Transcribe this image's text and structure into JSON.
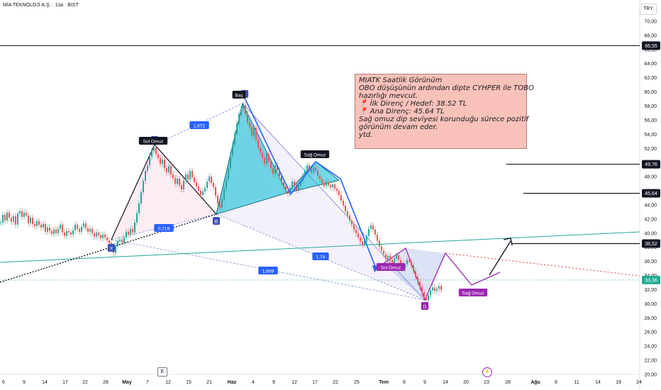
{
  "header": {
    "title": "MİA TEKNOLOJİ A.Ş. · 1sa · BIST",
    "currency": "TRY"
  },
  "annotation": {
    "lines": [
      "MIATK Saatlik Görünüm",
      "OBO düşüşünün ardından dipte CYHPER ile TOBO",
      "hazırlığı mevcut.",
      "📍 İlk Direnç / Hedef: 38.52 TL",
      "📍 Ana Direnç: 45.64 TL",
      "Sağ omuz dip seviyesi korunduğu sürece pozitif",
      "görünüm devam eder.",
      "ytd."
    ]
  },
  "markers": {
    "earnings": "E",
    "dividend": "⚡"
  },
  "chart_data": {
    "type": "line",
    "title": "",
    "y_axis": {
      "ticks": [
        "70,00",
        "68,00",
        "66,00",
        "64,00",
        "62,00",
        "60,00",
        "58,00",
        "56,00",
        "54,00",
        "52,00",
        "50,00",
        "48,00",
        "46,00",
        "44,00",
        "42,00",
        "40,00",
        "38,00",
        "36,00",
        "34,00",
        "32,00",
        "30,00",
        "28,00",
        "26,00",
        "24,00",
        "22,00",
        "20,00"
      ],
      "ylim": [
        20,
        71
      ]
    },
    "x_axis": {
      "ticks": [
        "6",
        "9",
        "14",
        "17",
        "22",
        "28",
        "May",
        "7",
        "12",
        "15",
        "21",
        "Haz",
        "4",
        "9",
        "12",
        "17",
        "22",
        "25",
        "Tem",
        "6",
        "9",
        "14",
        "20",
        "23",
        "28",
        "Ağu",
        "6",
        "11",
        "14",
        "19",
        "24"
      ]
    },
    "price_labels": [
      {
        "value": 66.55,
        "label": "66,55",
        "style": "black"
      },
      {
        "value": 49.76,
        "label": "49,76",
        "style": "black"
      },
      {
        "value": 45.64,
        "label": "45,64",
        "style": "black"
      },
      {
        "value": 38.52,
        "label": "38,52",
        "style": "black"
      },
      {
        "value": 33.36,
        "label": "33,36",
        "style": "teal"
      }
    ],
    "patterns": {
      "xabcd": {
        "points": [
          {
            "name": "X",
            "label": "X",
            "price": 37.0
          },
          {
            "name": "A",
            "label": "A",
            "price": 51.5
          },
          {
            "name": "B",
            "label": "B",
            "price": 42.0
          },
          {
            "name": "C",
            "label": "C",
            "price": 58.0
          },
          {
            "name": "D",
            "label": "D",
            "price": 30.0
          }
        ],
        "ratios": [
          {
            "name": "xb",
            "label": "0,719"
          },
          {
            "name": "ac",
            "label": "1,672"
          },
          {
            "name": "bd",
            "label": "1,74"
          },
          {
            "name": "xd",
            "label": "1,609"
          }
        ]
      },
      "obo": {
        "left": "Sol Omuz",
        "head": "Baş",
        "right": "Sağ Omuz"
      },
      "tobo": {
        "left": "Sol Omuz",
        "right": "Sağ Omuz"
      }
    },
    "series": [
      {
        "name": "price",
        "values": [
          [
            0,
            41.5
          ],
          [
            3,
            42.6
          ],
          [
            6,
            41.8
          ],
          [
            9,
            42.9
          ],
          [
            12,
            42.2
          ],
          [
            15,
            41.6
          ],
          [
            18,
            42.4
          ],
          [
            21,
            41.2
          ],
          [
            24,
            42.8
          ],
          [
            27,
            43.1
          ],
          [
            30,
            42.3
          ],
          [
            33,
            42.9
          ],
          [
            36,
            42.5
          ],
          [
            39,
            41.4
          ],
          [
            42,
            42.2
          ],
          [
            45,
            41.3
          ],
          [
            48,
            41.0
          ],
          [
            51,
            41.7
          ],
          [
            54,
            41.2
          ],
          [
            57,
            40.8
          ],
          [
            60,
            41.3
          ],
          [
            63,
            40.2
          ],
          [
            66,
            40.8
          ],
          [
            69,
            40.3
          ],
          [
            72,
            39.9
          ],
          [
            75,
            40.5
          ],
          [
            78,
            40.0
          ],
          [
            81,
            40.6
          ],
          [
            84,
            41.2
          ],
          [
            87,
            40.1
          ],
          [
            90,
            39.6
          ],
          [
            93,
            40.3
          ],
          [
            96,
            40.1
          ],
          [
            99,
            39.8
          ],
          [
            102,
            40.4
          ],
          [
            105,
            41.2
          ],
          [
            108,
            40.6
          ],
          [
            111,
            40.2
          ],
          [
            114,
            40.9
          ],
          [
            117,
            41.4
          ],
          [
            120,
            40.7
          ],
          [
            123,
            40.2
          ],
          [
            126,
            40.6
          ],
          [
            129,
            40.0
          ],
          [
            132,
            39.5
          ],
          [
            135,
            40.1
          ],
          [
            138,
            39.7
          ],
          [
            141,
            39.3
          ],
          [
            144,
            39.8
          ],
          [
            147,
            39.4
          ],
          [
            150,
            39.0
          ],
          [
            153,
            38.6
          ],
          [
            156,
            38.1
          ],
          [
            159,
            37.2
          ],
          [
            162,
            38.2
          ],
          [
            165,
            38.9
          ],
          [
            168,
            39.1
          ],
          [
            171,
            38.7
          ],
          [
            174,
            39.4
          ],
          [
            177,
            40.2
          ],
          [
            180,
            39.8
          ],
          [
            183,
            40.6
          ],
          [
            186,
            40.1
          ],
          [
            189,
            41.5
          ],
          [
            192,
            42.8
          ],
          [
            195,
            44.2
          ],
          [
            198,
            45.8
          ],
          [
            201,
            47.4
          ],
          [
            204,
            48.8
          ],
          [
            207,
            49.6
          ],
          [
            210,
            50.8
          ],
          [
            213,
            51.6
          ],
          [
            216,
            52.1
          ],
          [
            219,
            51.2
          ],
          [
            222,
            50.6
          ],
          [
            225,
            49.8
          ],
          [
            228,
            50.4
          ],
          [
            231,
            49.2
          ],
          [
            234,
            48.6
          ],
          [
            237,
            49.5
          ],
          [
            240,
            48.3
          ],
          [
            243,
            47.8
          ],
          [
            246,
            47.0
          ],
          [
            249,
            47.7
          ],
          [
            252,
            46.8
          ],
          [
            255,
            46.2
          ],
          [
            258,
            47.4
          ],
          [
            261,
            48.3
          ],
          [
            264,
            47.6
          ],
          [
            267,
            48.8
          ],
          [
            270,
            47.9
          ],
          [
            273,
            47.2
          ],
          [
            276,
            46.6
          ],
          [
            279,
            46.0
          ],
          [
            282,
            45.4
          ],
          [
            285,
            45.9
          ],
          [
            288,
            46.4
          ],
          [
            291,
            47.3
          ],
          [
            294,
            48.0
          ],
          [
            297,
            47.1
          ],
          [
            300,
            46.5
          ],
          [
            303,
            45.3
          ],
          [
            306,
            44.2
          ],
          [
            309,
            43.6
          ],
          [
            312,
            44.8
          ],
          [
            315,
            46.3
          ],
          [
            318,
            47.6
          ],
          [
            321,
            49.2
          ],
          [
            324,
            51.0
          ],
          [
            327,
            52.5
          ],
          [
            330,
            54.1
          ],
          [
            333,
            55.5
          ],
          [
            336,
            56.8
          ],
          [
            339,
            57.6
          ],
          [
            342,
            58.1
          ],
          [
            345,
            56.9
          ],
          [
            348,
            55.7
          ],
          [
            351,
            55.0
          ],
          [
            354,
            53.8
          ],
          [
            357,
            54.9
          ],
          [
            360,
            53.2
          ],
          [
            363,
            52.1
          ],
          [
            366,
            51.4
          ],
          [
            369,
            50.6
          ],
          [
            372,
            49.8
          ],
          [
            375,
            51.2
          ],
          [
            378,
            50.1
          ],
          [
            381,
            49.2
          ],
          [
            384,
            48.4
          ],
          [
            387,
            49.6
          ],
          [
            390,
            48.9
          ],
          [
            393,
            48.1
          ],
          [
            396,
            47.2
          ],
          [
            399,
            46.6
          ],
          [
            402,
            46.0
          ],
          [
            405,
            45.6
          ],
          [
            408,
            46.4
          ],
          [
            411,
            47.3
          ],
          [
            414,
            46.8
          ],
          [
            417,
            46.1
          ],
          [
            420,
            46.7
          ],
          [
            423,
            47.4
          ],
          [
            426,
            48.1
          ],
          [
            429,
            48.9
          ],
          [
            432,
            49.6
          ],
          [
            435,
            49.1
          ],
          [
            438,
            48.6
          ],
          [
            441,
            49.3
          ],
          [
            444,
            48.9
          ],
          [
            447,
            48.1
          ],
          [
            450,
            47.6
          ],
          [
            453,
            47.1
          ],
          [
            456,
            46.7
          ],
          [
            459,
            47.2
          ],
          [
            462,
            46.8
          ],
          [
            465,
            46.5
          ],
          [
            468,
            46.9
          ],
          [
            471,
            46.3
          ],
          [
            474,
            46.0
          ],
          [
            477,
            45.4
          ],
          [
            480,
            44.6
          ],
          [
            483,
            43.9
          ],
          [
            486,
            43.1
          ],
          [
            489,
            42.5
          ],
          [
            492,
            41.8
          ],
          [
            495,
            41.2
          ],
          [
            498,
            40.5
          ],
          [
            501,
            40.0
          ],
          [
            504,
            39.4
          ],
          [
            507,
            38.8
          ],
          [
            510,
            38.4
          ],
          [
            513,
            38.9
          ],
          [
            516,
            39.6
          ],
          [
            519,
            40.6
          ],
          [
            522,
            41.1
          ],
          [
            525,
            40.5
          ],
          [
            528,
            39.8
          ],
          [
            531,
            38.9
          ],
          [
            534,
            38.1
          ],
          [
            537,
            37.5
          ],
          [
            540,
            37.0
          ],
          [
            543,
            36.3
          ],
          [
            546,
            36.8
          ],
          [
            549,
            36.2
          ],
          [
            552,
            35.6
          ],
          [
            555,
            36.4
          ],
          [
            558,
            36.9
          ],
          [
            561,
            36.2
          ],
          [
            564,
            35.7
          ],
          [
            567,
            35.0
          ],
          [
            570,
            35.6
          ],
          [
            573,
            36.2
          ],
          [
            576,
            36.0
          ],
          [
            579,
            35.4
          ],
          [
            582,
            34.6
          ],
          [
            585,
            33.8
          ],
          [
            588,
            33.1
          ],
          [
            591,
            32.4
          ],
          [
            594,
            31.6
          ],
          [
            597,
            30.9
          ],
          [
            600,
            30.5
          ],
          [
            603,
            31.2
          ],
          [
            606,
            31.9
          ],
          [
            609,
            32.3
          ],
          [
            612,
            31.8
          ],
          [
            615,
            32.1
          ],
          [
            618,
            32.5
          ],
          [
            621,
            32.0
          ]
        ]
      }
    ]
  }
}
